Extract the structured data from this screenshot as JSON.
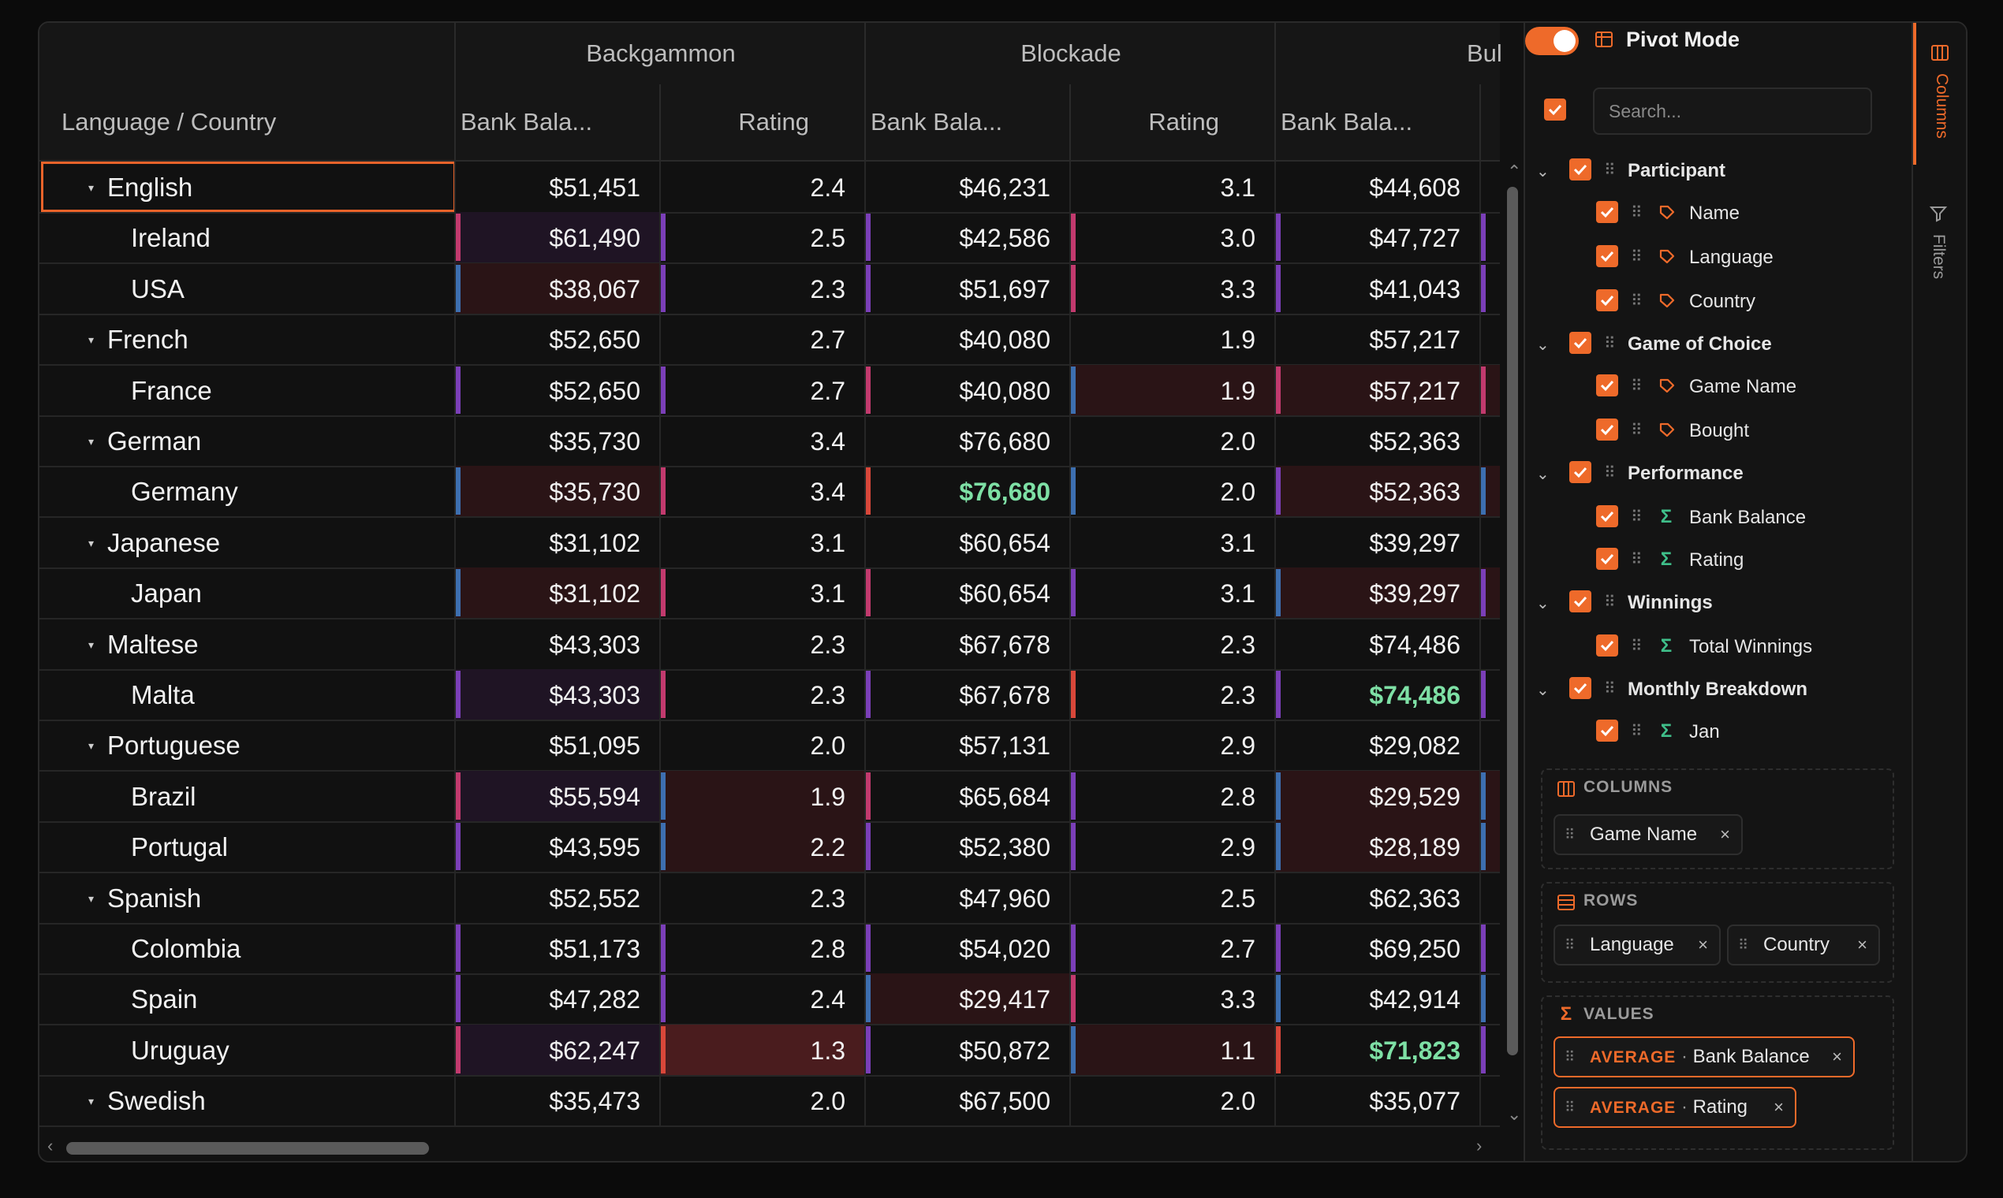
{
  "grid": {
    "group_headers": [
      "Backgammon",
      "Blockade",
      "Bul"
    ],
    "column_headers": [
      "Language / Country",
      "Bank Bala...",
      "Rating",
      "Bank Bala...",
      "Rating",
      "Bank Bala..."
    ],
    "rows": [
      {
        "type": "group",
        "label": "English",
        "values": [
          "$51,451",
          "2.4",
          "$46,231",
          "3.1",
          "$44,608"
        ],
        "focused": true
      },
      {
        "type": "leaf",
        "label": "Ireland",
        "values": [
          "$61,490",
          "2.5",
          "$42,586",
          "3.0",
          "$47,727"
        ]
      },
      {
        "type": "leaf",
        "label": "USA",
        "values": [
          "$38,067",
          "2.3",
          "$51,697",
          "3.3",
          "$41,043"
        ]
      },
      {
        "type": "group",
        "label": "French",
        "values": [
          "$52,650",
          "2.7",
          "$40,080",
          "1.9",
          "$57,217"
        ]
      },
      {
        "type": "leaf",
        "label": "France",
        "values": [
          "$52,650",
          "2.7",
          "$40,080",
          "1.9",
          "$57,217"
        ]
      },
      {
        "type": "group",
        "label": "German",
        "values": [
          "$35,730",
          "3.4",
          "$76,680",
          "2.0",
          "$52,363"
        ]
      },
      {
        "type": "leaf",
        "label": "Germany",
        "values": [
          "$35,730",
          "3.4",
          "$76,680",
          "2.0",
          "$52,363"
        ],
        "highlight": [
          2
        ]
      },
      {
        "type": "group",
        "label": "Japanese",
        "values": [
          "$31,102",
          "3.1",
          "$60,654",
          "3.1",
          "$39,297"
        ]
      },
      {
        "type": "leaf",
        "label": "Japan",
        "values": [
          "$31,102",
          "3.1",
          "$60,654",
          "3.1",
          "$39,297"
        ]
      },
      {
        "type": "group",
        "label": "Maltese",
        "values": [
          "$43,303",
          "2.3",
          "$67,678",
          "2.3",
          "$74,486"
        ]
      },
      {
        "type": "leaf",
        "label": "Malta",
        "values": [
          "$43,303",
          "2.3",
          "$67,678",
          "2.3",
          "$74,486"
        ],
        "highlight": [
          4
        ]
      },
      {
        "type": "group",
        "label": "Portuguese",
        "values": [
          "$51,095",
          "2.0",
          "$57,131",
          "2.9",
          "$29,082"
        ]
      },
      {
        "type": "leaf",
        "label": "Brazil",
        "values": [
          "$55,594",
          "1.9",
          "$65,684",
          "2.8",
          "$29,529"
        ]
      },
      {
        "type": "leaf",
        "label": "Portugal",
        "values": [
          "$43,595",
          "2.2",
          "$52,380",
          "2.9",
          "$28,189"
        ]
      },
      {
        "type": "group",
        "label": "Spanish",
        "values": [
          "$52,552",
          "2.3",
          "$47,960",
          "2.5",
          "$62,363"
        ]
      },
      {
        "type": "leaf",
        "label": "Colombia",
        "values": [
          "$51,173",
          "2.8",
          "$54,020",
          "2.7",
          "$69,250"
        ]
      },
      {
        "type": "leaf",
        "label": "Spain",
        "values": [
          "$47,282",
          "2.4",
          "$29,417",
          "3.3",
          "$42,914"
        ]
      },
      {
        "type": "leaf",
        "label": "Uruguay",
        "values": [
          "$62,247",
          "1.3",
          "$50,872",
          "1.1",
          "$71,823"
        ],
        "highlight": [
          4
        ]
      },
      {
        "type": "group",
        "label": "Swedish",
        "values": [
          "$35,473",
          "2.0",
          "$67,500",
          "2.0",
          "$35,077"
        ]
      }
    ],
    "colors": {
      "accent": "#ee6a2a",
      "highlight_text": "#7ee0a5",
      "bar_purple": "#7b3fb8",
      "bar_pink": "#c23a6e",
      "bar_blue": "#3d6fb0",
      "bar_red": "#d8473a",
      "cell_dark_red": "#2a1416",
      "cell_red": "#4a1c1e",
      "cell_purple_tint": "#1f1424"
    }
  },
  "panel": {
    "pivot_mode_label": "Pivot Mode",
    "pivot_mode_on": true,
    "search_placeholder": "Search...",
    "tree": [
      {
        "level": 0,
        "label": "Participant"
      },
      {
        "level": 1,
        "label": "Name",
        "icon": "tag-icon"
      },
      {
        "level": 1,
        "label": "Language",
        "icon": "tag-icon"
      },
      {
        "level": 1,
        "label": "Country",
        "icon": "tag-icon"
      },
      {
        "level": 0,
        "label": "Game of Choice"
      },
      {
        "level": 1,
        "label": "Game Name",
        "icon": "tag-icon"
      },
      {
        "level": 1,
        "label": "Bought",
        "icon": "tag-icon"
      },
      {
        "level": 0,
        "label": "Performance"
      },
      {
        "level": 1,
        "label": "Bank Balance",
        "icon": "sigma-icon"
      },
      {
        "level": 1,
        "label": "Rating",
        "icon": "sigma-icon"
      },
      {
        "level": 0,
        "label": "Winnings"
      },
      {
        "level": 1,
        "label": "Total Winnings",
        "icon": "sigma-icon"
      },
      {
        "level": 0,
        "label": "Monthly Breakdown"
      },
      {
        "level": 1,
        "label": "Jan",
        "icon": "sigma-icon"
      }
    ],
    "columns_zone": {
      "title": "COLUMNS",
      "chips": [
        "Game Name"
      ]
    },
    "rows_zone": {
      "title": "ROWS",
      "chips": [
        "Language",
        "Country"
      ]
    },
    "values_zone": {
      "title": "VALUES",
      "chips": [
        {
          "agg": "AVERAGE",
          "label": "Bank Balance"
        },
        {
          "agg": "AVERAGE",
          "label": "Rating"
        }
      ]
    }
  },
  "sidetabs": {
    "columns": "Columns",
    "filters": "Filters"
  }
}
